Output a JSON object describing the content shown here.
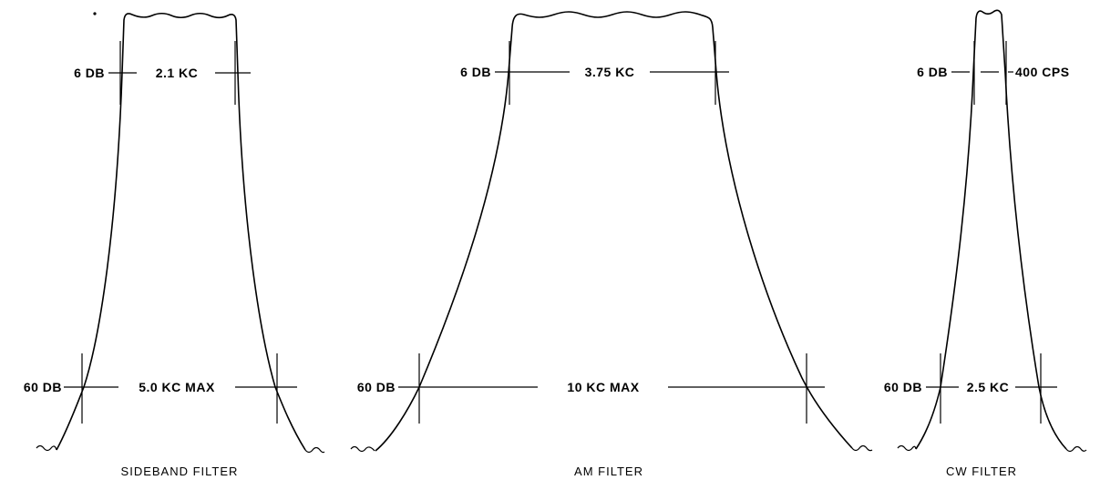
{
  "filters": [
    {
      "caption": "SIDEBAND FILTER",
      "upper_level": "6 DB",
      "upper_width": "2.1 KC",
      "lower_level": "60 DB",
      "lower_width": "5.0 KC MAX"
    },
    {
      "caption": "AM FILTER",
      "upper_level": "6 DB",
      "upper_width": "3.75 KC",
      "lower_level": "60 DB",
      "lower_width": "10 KC MAX"
    },
    {
      "caption": "CW FILTER",
      "upper_level": "6 DB",
      "upper_width": "400 CPS",
      "lower_level": "60 DB",
      "lower_width": "2.5 KC"
    }
  ]
}
